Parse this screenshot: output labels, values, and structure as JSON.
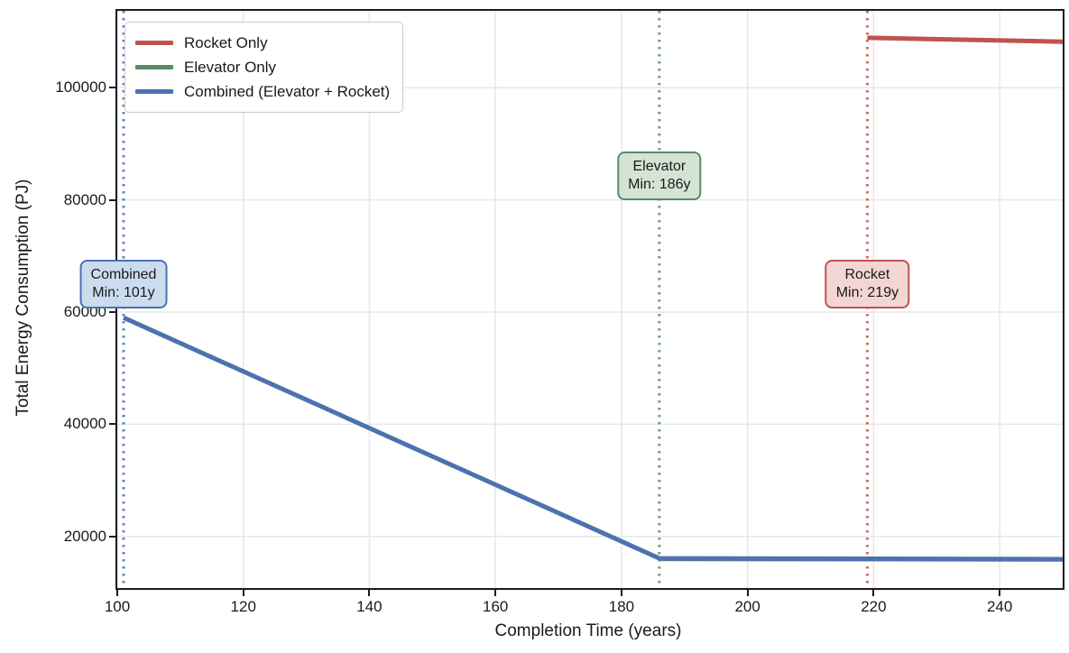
{
  "chart_data": {
    "type": "line",
    "title": "",
    "xlabel": "Completion Time (years)",
    "ylabel": "Total Energy Consumption (PJ)",
    "xlim": [
      100,
      250
    ],
    "ylim": [
      10800,
      113700
    ],
    "x_ticks": [
      100,
      120,
      140,
      160,
      180,
      200,
      220,
      240
    ],
    "y_ticks": [
      20000,
      40000,
      60000,
      80000,
      100000
    ],
    "grid": true,
    "grid_color": "#e7e7e7",
    "legend_position": "upper left",
    "series": [
      {
        "name": "Rocket Only",
        "color": "#bf5350",
        "points": [
          [
            219,
            108900
          ],
          [
            250,
            108200
          ]
        ]
      },
      {
        "name": "Elevator Only",
        "color": "#5a8b64",
        "points": [
          [
            186,
            16000
          ],
          [
            250,
            15900
          ]
        ]
      },
      {
        "name": "Combined (Elevator + Rocket)",
        "color": "#4c72b0",
        "points": [
          [
            101,
            59000
          ],
          [
            186,
            16100
          ],
          [
            250,
            15950
          ]
        ]
      }
    ],
    "annotations": [
      {
        "name": "combined-min",
        "label_lines": [
          "Combined",
          "Min: 101y"
        ],
        "x": 101,
        "label_y": 65000,
        "color": "#4c72b0",
        "fill": "#cbdcef"
      },
      {
        "name": "elevator-min",
        "label_lines": [
          "Elevator",
          "Min: 186y"
        ],
        "x": 186,
        "label_y": 84300,
        "color": "#5a8b64",
        "fill": "#d3e4d4"
      },
      {
        "name": "rocket-min",
        "label_lines": [
          "Rocket",
          "Min: 219y"
        ],
        "x": 219,
        "label_y": 65000,
        "color": "#bf5350",
        "fill": "#f2d6d3"
      }
    ]
  }
}
